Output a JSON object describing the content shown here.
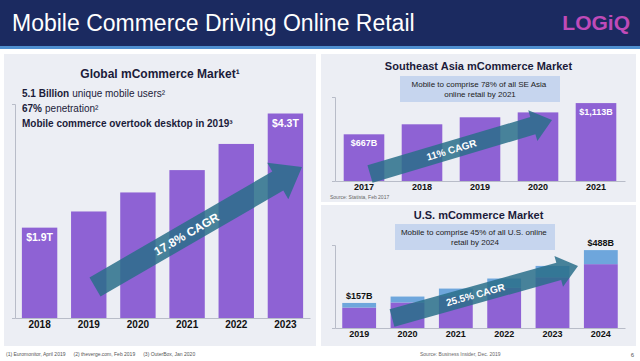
{
  "slide": {
    "title": "Mobile Commerce Driving Online Retail",
    "logo": "LOGiQ",
    "page_number": 6,
    "footnotes": [
      "(1) Euromonitor, April 2019",
      "(2) theverge.com, Feb 2019",
      "(3) OuterBox, Jan 2020"
    ]
  },
  "chart_data": [
    {
      "type": "bar",
      "title": "Global mCommerce Market¹",
      "notes": [
        {
          "bold": "5.1 Billion",
          "rest": "unique mobile users²"
        },
        {
          "bold": "67%",
          "rest": "penetration²"
        },
        {
          "bold": "Mobile commerce overtook desktop in 2019³"
        }
      ],
      "categories": [
        "2018",
        "2019",
        "2020",
        "2021",
        "2022",
        "2023"
      ],
      "values": [
        1.9,
        2.24,
        2.64,
        3.11,
        3.66,
        4.3
      ],
      "value_labels": [
        "$1.9T",
        null,
        null,
        null,
        null,
        "$4.3T"
      ],
      "data_labels": true,
      "color": "#8e62d4",
      "ylim": [
        0,
        4.5
      ],
      "yticks": [
        0
      ],
      "tick_labels": "x",
      "annotations": [
        "17.8% CAGR"
      ]
    },
    {
      "type": "bar",
      "title": "Southeast Asia mCommerce Market",
      "categories": [
        "2017",
        "2018",
        "2019",
        "2020",
        "2021"
      ],
      "values": [
        667,
        810,
        910,
        980,
        1113
      ],
      "value_labels": [
        "$667B",
        null,
        null,
        null,
        "$1,113B"
      ],
      "data_labels": true,
      "color": "#8e62d4",
      "ylim": [
        0,
        1200
      ],
      "yticks": [
        0
      ],
      "tick_labels": "x",
      "annotations": [
        "11% CAGR",
        "Mobile to comprise 78% of all SE Asia online retail by 2021"
      ],
      "source": "Source: Statista, Feb 2017"
    },
    {
      "type": "bar",
      "stacked": true,
      "title": "U.S. mCommerce Market",
      "categories": [
        "2019",
        "2020",
        "2021",
        "2022",
        "2023",
        "2024"
      ],
      "series": [
        {
          "color": "#8e62d4",
          "values": [
            128,
            160,
            200,
            252,
            318,
            400
          ]
        },
        {
          "color": "#6ea6dc",
          "values": [
            29,
            37,
            47,
            58,
            71,
            88
          ]
        }
      ],
      "totals": [
        157,
        null,
        null,
        null,
        null,
        488
      ],
      "total_labels": [
        "$157B",
        null,
        null,
        null,
        null,
        "$488B"
      ],
      "ylim": [
        0,
        520
      ],
      "yticks": [
        0
      ],
      "tick_labels": "x",
      "annotations": [
        "25.5% CAGR",
        "Mobile to comprise 45% of all U.S. online retail by 2024"
      ],
      "source": "Source: Business Insider, Dec. 2019"
    }
  ]
}
